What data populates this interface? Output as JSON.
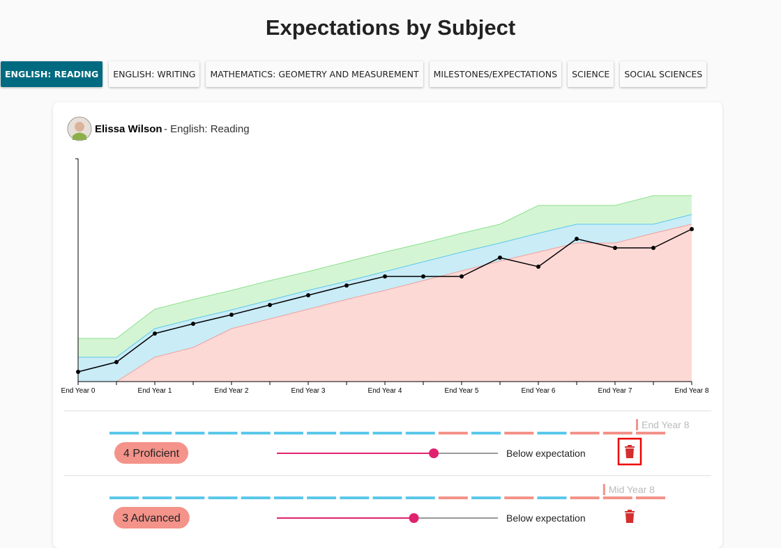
{
  "header": {
    "title": "Expectations by Subject"
  },
  "tabs": {
    "items": [
      "ENGLISH: READING",
      "ENGLISH: WRITING",
      "MATHEMATICS: GEOMETRY AND MEASUREMENT",
      "MILESTONES/EXPECTATIONS",
      "SCIENCE",
      "SOCIAL SCIENCES"
    ],
    "active": 0
  },
  "card": {
    "student": "Elissa Wilson",
    "subject": "- English: Reading"
  },
  "chart": {
    "type": "line",
    "categories": [
      "End Year 0",
      null,
      "End Year 1",
      null,
      "End Year 2",
      null,
      "End Year 3",
      null,
      "End Year 4",
      null,
      "End Year 5",
      null,
      "End Year 6",
      null,
      "End Year 7",
      null,
      "End Year 8"
    ],
    "ylim": [
      0,
      320
    ],
    "bands": [
      {
        "color": "#d4f5d4",
        "stroke": "#8be08b",
        "values": [
          62,
          62,
          104,
          118,
          131,
          145,
          158,
          172,
          186,
          199,
          213,
          226,
          253,
          253,
          253,
          267,
          267
        ]
      },
      {
        "color": "#c9ecf7",
        "stroke": "#5bc8ea",
        "values": [
          35,
          35,
          76,
          90,
          103,
          117,
          131,
          144,
          158,
          172,
          186,
          199,
          213,
          226,
          226,
          226,
          240
        ]
      },
      {
        "color": "#fdd9d6",
        "stroke": "#f0a09a",
        "values": [
          0,
          0,
          35,
          49,
          76,
          90,
          104,
          118,
          131,
          145,
          159,
          173,
          186,
          199,
          199,
          213,
          226
        ]
      }
    ],
    "line": {
      "color": "#000000",
      "values": [
        14,
        28,
        69,
        83,
        96,
        110,
        124,
        138,
        151,
        151,
        151,
        178,
        165,
        205,
        192,
        192,
        219
      ]
    }
  },
  "rows": [
    {
      "level": "4 Proficient",
      "status": "Below expectation",
      "marker": "End Year 8",
      "marker_index": 16,
      "slider_value": 71,
      "slider_max": 100,
      "dashes": [
        "#5bc8ea",
        "#5bc8ea",
        "#5bc8ea",
        "#5bc8ea",
        "#5bc8ea",
        "#5bc8ea",
        "#5bc8ea",
        "#5bc8ea",
        "#5bc8ea",
        "#5bc8ea",
        "#f4938a",
        "#5bc8ea",
        "#f4938a",
        "#5bc8ea",
        "#f4938a",
        "#f4938a",
        "#f4938a"
      ]
    },
    {
      "level": "3 Advanced",
      "status": "Below expectation",
      "marker": "Mid Year 8",
      "marker_index": 15,
      "slider_value": 62,
      "slider_max": 100,
      "dashes": [
        "#5bc8ea",
        "#5bc8ea",
        "#5bc8ea",
        "#5bc8ea",
        "#5bc8ea",
        "#5bc8ea",
        "#5bc8ea",
        "#5bc8ea",
        "#5bc8ea",
        "#5bc8ea",
        "#f4938a",
        "#5bc8ea",
        "#f4938a",
        "#5bc8ea",
        "#f4938a",
        "#f4938a",
        "#f4938a"
      ]
    }
  ]
}
